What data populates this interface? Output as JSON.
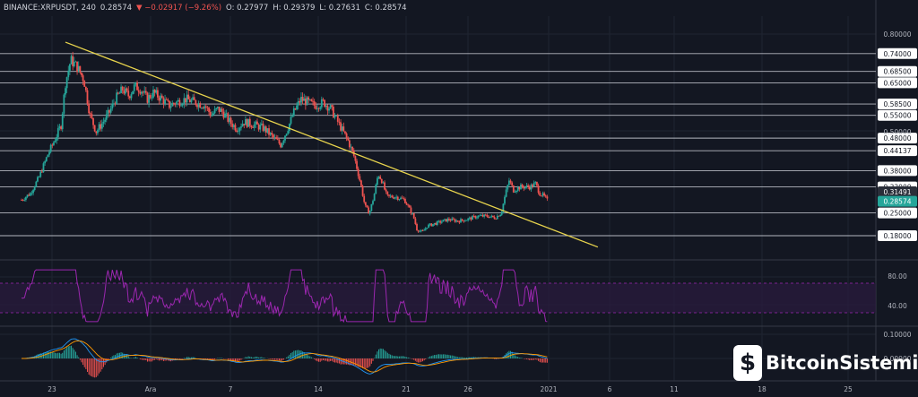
{
  "header": {
    "symbol": "BINANCE:XRPUSDT, 240",
    "last": "0.28574",
    "change": "▼ −0.02917 (−9.26%)",
    "open": "O: 0.27977",
    "high": "H: 0.29379",
    "low": "L: 0.27631",
    "close": "C: 0.28574"
  },
  "watermark": {
    "text": "BitcoinSistemi"
  },
  "colors": {
    "background": "#131722",
    "up": "#26a69a",
    "down": "#ef5350",
    "trendline": "#e8d44d",
    "level": "#d1d4dc",
    "rsi": "#9c27b0",
    "macd": "#2196f3",
    "signal": "#ff9800"
  },
  "chart_data": [
    {
      "type": "candlestick",
      "timeframe": "240",
      "x_ticks": [
        "23",
        "Ara",
        "7",
        "14",
        "21",
        "26",
        "2021",
        "6",
        "11",
        "18",
        "25"
      ],
      "y_ticks": [
        "0.80000",
        "0.50000",
        "0.10000"
      ],
      "ylim": [
        0.14,
        0.83
      ],
      "price_levels": [
        {
          "value": 0.74,
          "label": "0.74000"
        },
        {
          "value": 0.685,
          "label": "0.68500"
        },
        {
          "value": 0.65,
          "label": "0.65000"
        },
        {
          "value": 0.585,
          "label": "0.58500"
        },
        {
          "value": 0.55,
          "label": "0.55000"
        },
        {
          "value": 0.48,
          "label": "0.48000"
        },
        {
          "value": 0.44137,
          "label": "0.44137"
        },
        {
          "value": 0.38,
          "label": "0.38000"
        },
        {
          "value": 0.33,
          "label": "0.33000"
        },
        {
          "value": 0.25,
          "label": "0.25000"
        },
        {
          "value": 0.18,
          "label": "0.18000"
        }
      ],
      "price_tags": [
        {
          "value": 0.31491,
          "label": "0.31491",
          "style": "dark"
        },
        {
          "value": 0.28574,
          "label": "0.28574",
          "style": "teal"
        }
      ],
      "trendline": {
        "start": {
          "day": 0.0,
          "price": 0.775
        },
        "end": {
          "day": 60.6,
          "price": 0.145
        }
      },
      "close_path": [
        [
          -5.0,
          0.29
        ],
        [
          -4.0,
          0.31
        ],
        [
          -3.0,
          0.36
        ],
        [
          -2.0,
          0.43
        ],
        [
          -1.3,
          0.47
        ],
        [
          -0.5,
          0.52
        ],
        [
          0.0,
          0.65
        ],
        [
          0.6,
          0.72
        ],
        [
          1.3,
          0.7
        ],
        [
          2.1,
          0.66
        ],
        [
          2.8,
          0.55
        ],
        [
          3.5,
          0.5
        ],
        [
          4.3,
          0.53
        ],
        [
          5.0,
          0.56
        ],
        [
          5.7,
          0.6
        ],
        [
          6.5,
          0.63
        ],
        [
          7.2,
          0.61
        ],
        [
          7.9,
          0.64
        ],
        [
          8.6,
          0.63
        ],
        [
          9.3,
          0.6
        ],
        [
          10.0,
          0.62
        ],
        [
          11.0,
          0.6
        ],
        [
          11.8,
          0.58
        ],
        [
          12.6,
          0.59
        ],
        [
          13.7,
          0.6
        ],
        [
          14.8,
          0.59
        ],
        [
          15.9,
          0.58
        ],
        [
          16.6,
          0.55
        ],
        [
          17.3,
          0.57
        ],
        [
          17.9,
          0.56
        ],
        [
          18.7,
          0.53
        ],
        [
          19.5,
          0.51
        ],
        [
          20.3,
          0.53
        ],
        [
          21.6,
          0.52
        ],
        [
          22.6,
          0.51
        ],
        [
          23.7,
          0.48
        ],
        [
          24.5,
          0.46
        ],
        [
          25.3,
          0.51
        ],
        [
          26.0,
          0.56
        ],
        [
          26.8,
          0.6
        ],
        [
          27.6,
          0.59
        ],
        [
          28.4,
          0.58
        ],
        [
          29.4,
          0.59
        ],
        [
          30.2,
          0.57
        ],
        [
          31.0,
          0.53
        ],
        [
          31.6,
          0.5
        ],
        [
          32.2,
          0.47
        ],
        [
          32.9,
          0.42
        ],
        [
          33.6,
          0.34
        ],
        [
          34.1,
          0.27
        ],
        [
          34.6,
          0.25
        ],
        [
          35.1,
          0.3
        ],
        [
          35.6,
          0.37
        ],
        [
          36.0,
          0.35
        ],
        [
          36.6,
          0.3
        ],
        [
          37.6,
          0.3
        ],
        [
          38.6,
          0.29
        ],
        [
          39.6,
          0.24
        ],
        [
          40.0,
          0.2
        ],
        [
          40.6,
          0.19
        ],
        [
          41.2,
          0.21
        ],
        [
          42.4,
          0.22
        ],
        [
          43.6,
          0.23
        ],
        [
          44.7,
          0.225
        ],
        [
          45.7,
          0.23
        ],
        [
          46.9,
          0.24
        ],
        [
          48.1,
          0.24
        ],
        [
          48.9,
          0.235
        ],
        [
          49.6,
          0.25
        ],
        [
          50.1,
          0.31
        ],
        [
          50.5,
          0.35
        ],
        [
          51.0,
          0.32
        ],
        [
          51.8,
          0.33
        ],
        [
          52.9,
          0.33
        ],
        [
          53.5,
          0.34
        ],
        [
          54.0,
          0.31
        ],
        [
          54.5,
          0.3
        ],
        [
          54.9,
          0.2857
        ]
      ],
      "levels": {
        "rsi": [
          80.0,
          40.0
        ],
        "macd": [
          0.1,
          0.0
        ]
      },
      "indicators": {
        "rsi": {
          "band": [
            70,
            30
          ],
          "labels": [
            "80.00",
            "40.00"
          ]
        },
        "macd": {
          "labels": [
            "0.10000",
            "0.00000"
          ]
        }
      }
    }
  ]
}
